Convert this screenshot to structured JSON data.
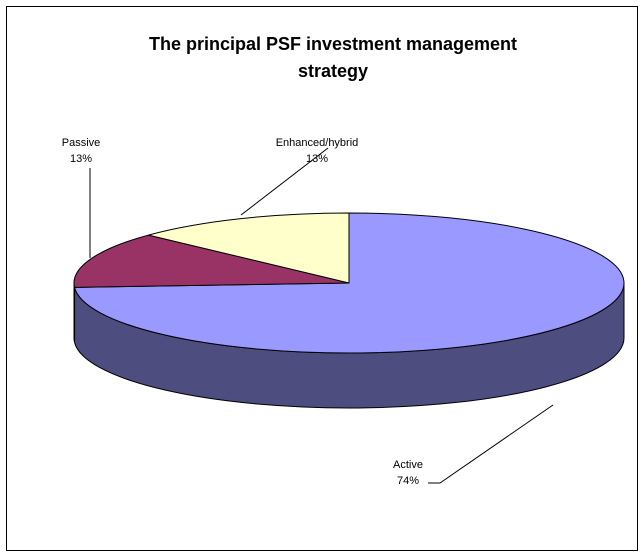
{
  "chart_data": {
    "type": "pie",
    "title_lines": [
      "The principal PSF investment management",
      "strategy"
    ],
    "categories": [
      "Active",
      "Passive",
      "Enhanced/hybrid"
    ],
    "values": [
      74,
      13,
      13
    ],
    "value_labels": [
      "74%",
      "13%",
      "13%"
    ],
    "colors": [
      "#9999ff",
      "#993366",
      "#ffffcc"
    ]
  }
}
